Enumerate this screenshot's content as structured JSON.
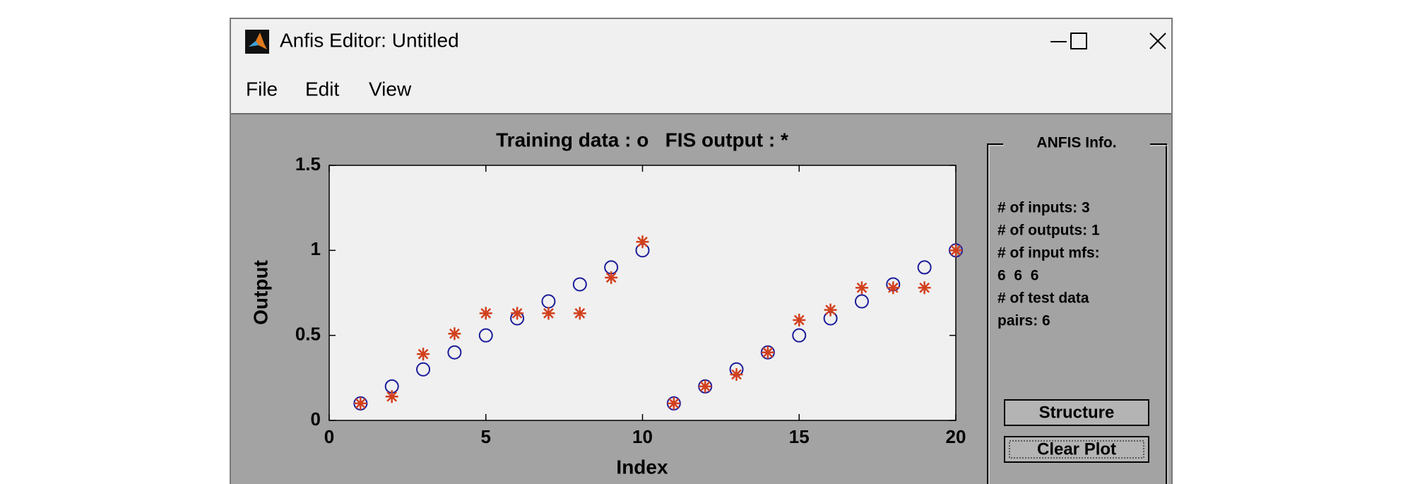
{
  "window": {
    "title": "Anfis Editor: Untitled"
  },
  "menu": [
    "File",
    "Edit",
    "View"
  ],
  "chart_data": {
    "type": "scatter",
    "title": "Training data : o   FIS output : *",
    "x_label": "Index",
    "y_label": "Output",
    "x": [
      1,
      2,
      3,
      4,
      5,
      6,
      7,
      8,
      9,
      10,
      11,
      12,
      13,
      14,
      15,
      16,
      17,
      18,
      19,
      20
    ],
    "series": [
      {
        "color": "#1c1c9c",
        "marker": "circle",
        "values": [
          0.1,
          0.2,
          0.3,
          0.4,
          0.5,
          0.6,
          0.7,
          0.8,
          0.9,
          1.0,
          0.1,
          0.2,
          0.3,
          0.4,
          0.5,
          0.6,
          0.7,
          0.8,
          0.9,
          1.0
        ]
      },
      {
        "color": "#d2401e",
        "marker": "star",
        "values": [
          0.1,
          0.14,
          0.39,
          0.51,
          0.63,
          0.63,
          0.63,
          0.63,
          0.84,
          1.05,
          0.1,
          0.2,
          0.27,
          0.4,
          0.59,
          0.65,
          0.78,
          0.78,
          0.78,
          1.0
        ]
      }
    ],
    "xlim": [
      0,
      20
    ],
    "xticks": [
      0,
      5,
      10,
      15,
      20
    ],
    "ylim": [
      0,
      1.5
    ],
    "yticks": [
      0,
      0.5,
      1,
      1.5
    ]
  },
  "info_panel": {
    "title": "ANFIS Info.",
    "lines": [
      "# of inputs: 3",
      "# of outputs: 1",
      "# of input mfs:",
      "6  6  6",
      "# of test data",
      "pairs: 6"
    ]
  },
  "buttons": [
    "Structure",
    "Clear Plot"
  ]
}
